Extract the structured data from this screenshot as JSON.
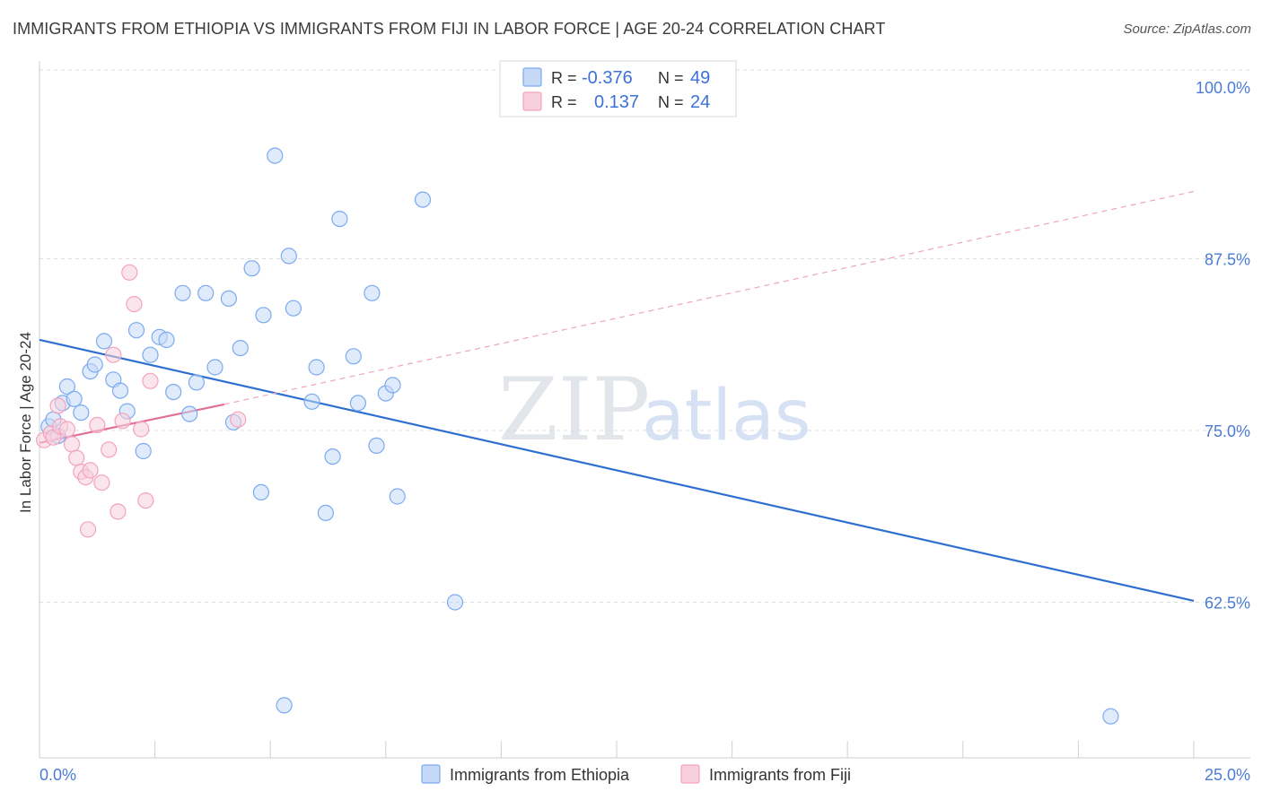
{
  "chart_data": {
    "type": "scatter",
    "title": "IMMIGRANTS FROM ETHIOPIA VS IMMIGRANTS FROM FIJI IN LABOR FORCE | AGE 20-24 CORRELATION CHART",
    "source": "Source: ZipAtlas.com",
    "xlabel": "",
    "ylabel": "In Labor Force | Age 20-24",
    "xlim": [
      0,
      25
    ],
    "ylim": [
      52,
      102
    ],
    "x_tick_labels": [
      "0.0%",
      "25.0%"
    ],
    "y_ticks": [
      {
        "value": 100,
        "label": "100.0%"
      },
      {
        "value": 87.5,
        "label": "87.5%"
      },
      {
        "value": 75,
        "label": "75.0%"
      },
      {
        "value": 62.5,
        "label": "62.5%"
      }
    ],
    "watermark": {
      "zip": "ZIP",
      "atlas": "atlas"
    },
    "legend": {
      "rows": [
        {
          "r_label": "R =",
          "r_value": "-0.376",
          "n_label": "N =",
          "n_value": "49"
        },
        {
          "r_label": "R =",
          "r_value": "0.137",
          "n_label": "N =",
          "n_value": "24"
        }
      ]
    },
    "series": [
      {
        "name": "Immigrants from Ethiopia",
        "color": "#7baaf0",
        "fill": "#c5d9f7",
        "trend": {
          "x0": 0,
          "y0": 81.6,
          "x1": 25,
          "y1": 62.6,
          "color": "#2f6fd0"
        },
        "points": [
          [
            0.2,
            75.3
          ],
          [
            0.3,
            75.8
          ],
          [
            0.4,
            74.6
          ],
          [
            0.5,
            77.0
          ],
          [
            0.6,
            78.2
          ],
          [
            0.75,
            77.3
          ],
          [
            0.9,
            76.3
          ],
          [
            1.1,
            79.3
          ],
          [
            1.2,
            79.8
          ],
          [
            1.4,
            81.5
          ],
          [
            1.6,
            78.7
          ],
          [
            1.75,
            77.9
          ],
          [
            1.9,
            76.4
          ],
          [
            2.1,
            82.3
          ],
          [
            2.25,
            73.5
          ],
          [
            2.4,
            80.5
          ],
          [
            2.6,
            81.8
          ],
          [
            2.75,
            81.6
          ],
          [
            2.9,
            77.8
          ],
          [
            3.1,
            85.0
          ],
          [
            3.25,
            76.2
          ],
          [
            3.4,
            78.5
          ],
          [
            3.6,
            85.0
          ],
          [
            3.8,
            79.6
          ],
          [
            4.1,
            84.6
          ],
          [
            4.2,
            75.6
          ],
          [
            4.35,
            81.0
          ],
          [
            4.6,
            86.8
          ],
          [
            4.8,
            70.5
          ],
          [
            4.85,
            83.4
          ],
          [
            5.1,
            95.0
          ],
          [
            5.3,
            55.0
          ],
          [
            5.4,
            87.7
          ],
          [
            5.5,
            83.9
          ],
          [
            5.9,
            77.1
          ],
          [
            6.0,
            79.6
          ],
          [
            6.2,
            69.0
          ],
          [
            6.35,
            73.1
          ],
          [
            6.5,
            90.4
          ],
          [
            6.8,
            80.4
          ],
          [
            6.9,
            77.0
          ],
          [
            7.2,
            85.0
          ],
          [
            7.3,
            73.9
          ],
          [
            7.5,
            77.7
          ],
          [
            7.65,
            78.3
          ],
          [
            7.75,
            70.2
          ],
          [
            8.3,
            91.8
          ],
          [
            9.0,
            62.5
          ],
          [
            23.2,
            54.2
          ]
        ]
      },
      {
        "name": "Immigrants from Fiji",
        "color": "#f3a3bd",
        "fill": "#f8cfdc",
        "trend": {
          "x0": 0,
          "y0": 74.1,
          "x1": 4.0,
          "y1": 76.9,
          "color": "#e0709a"
        },
        "trend_extension": {
          "x0": 4.0,
          "y0": 76.9,
          "x1": 25,
          "y1": 92.4
        },
        "points": [
          [
            0.1,
            74.3
          ],
          [
            0.25,
            74.8
          ],
          [
            0.3,
            74.5
          ],
          [
            0.4,
            76.8
          ],
          [
            0.45,
            75.3
          ],
          [
            0.6,
            75.1
          ],
          [
            0.7,
            74.0
          ],
          [
            0.8,
            73.0
          ],
          [
            0.9,
            72.0
          ],
          [
            1.0,
            71.6
          ],
          [
            1.05,
            67.8
          ],
          [
            1.1,
            72.1
          ],
          [
            1.25,
            75.4
          ],
          [
            1.35,
            71.2
          ],
          [
            1.5,
            73.6
          ],
          [
            1.6,
            80.5
          ],
          [
            1.7,
            69.1
          ],
          [
            1.8,
            75.7
          ],
          [
            1.95,
            86.5
          ],
          [
            2.05,
            84.2
          ],
          [
            2.2,
            75.1
          ],
          [
            2.3,
            69.9
          ],
          [
            2.4,
            78.6
          ],
          [
            4.3,
            75.8
          ]
        ]
      }
    ]
  }
}
